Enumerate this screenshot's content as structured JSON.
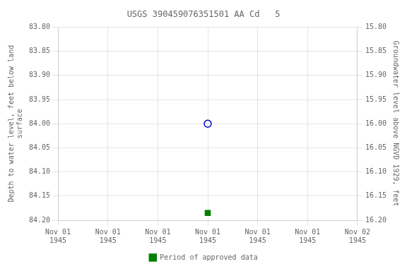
{
  "chart_data": {
    "type": "scatter",
    "title": "USGS 390459076351501 AA Cd   5",
    "categories": [
      "Nov 01\n1945",
      "Nov 01\n1945",
      "Nov 01\n1945",
      "Nov 01\n1945",
      "Nov 01\n1945",
      "Nov 01\n1945",
      "Nov 02\n1945"
    ],
    "y_label": "Depth to water level, feet below land\nsurface",
    "y2_label": "Groundwater level above NGVD 1929, feet",
    "ylim": [
      84.2,
      83.8
    ],
    "yticks": [
      {
        "value": 83.8,
        "label": "83.80"
      },
      83.85,
      {
        "value": 83.9,
        "label": "83.90"
      },
      83.95,
      {
        "value": 84.0,
        "label": "84.00"
      },
      84.05,
      {
        "value": 84.1,
        "label": "84.10"
      },
      84.15,
      {
        "value": 84.2,
        "label": "84.20"
      }
    ],
    "y2lim": [
      16.2,
      15.8
    ],
    "y2ticks": [
      {
        "value": 16.2,
        "label": "16.20"
      },
      16.15,
      {
        "value": 16.1,
        "label": "16.10"
      },
      16.05,
      {
        "value": 16.0,
        "label": "16.00"
      },
      15.95,
      {
        "value": 15.9,
        "label": "15.90"
      },
      15.85,
      {
        "value": 15.8,
        "label": "15.80"
      }
    ],
    "grid": true,
    "legend": "bottom",
    "series": [
      {
        "color": "#0000cc",
        "marker": "open_circle",
        "values": [
          null,
          null,
          null,
          84.0,
          null,
          null,
          null
        ]
      },
      {
        "name": "Period of approved data",
        "color": "#008000",
        "marker": "square",
        "values": [
          null,
          null,
          null,
          84.185,
          null,
          null,
          null
        ]
      }
    ]
  }
}
